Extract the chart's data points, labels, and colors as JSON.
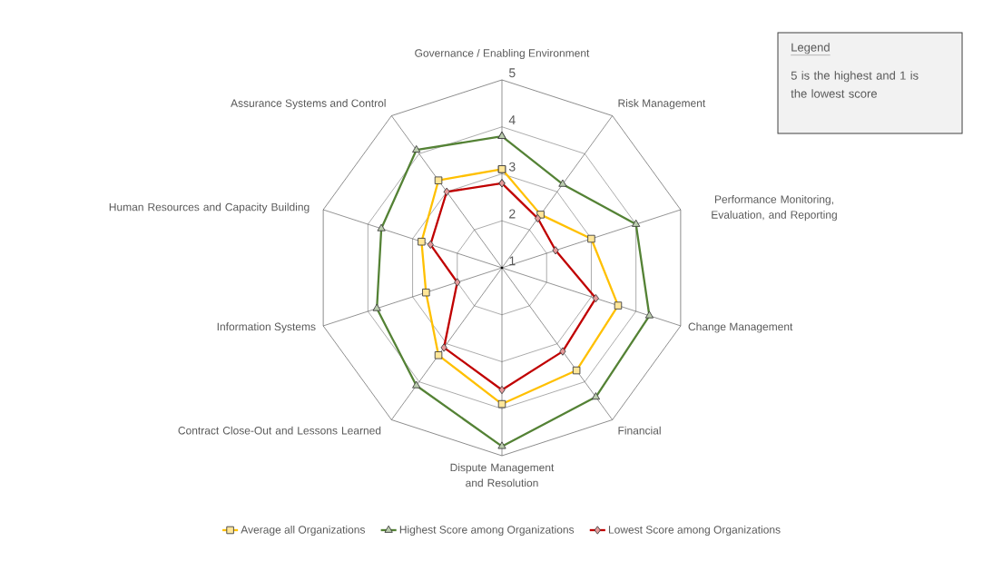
{
  "chart_data": {
    "type": "radar",
    "categories": [
      "Governance / Enabling Environment",
      "Risk Management",
      "Performance Monitoring, Evaluation, and Reporting",
      "Change Management",
      "Financial",
      "Dispute Management and Resolution",
      "Contract Close-Out and Lessons Learned",
      "Information Systems",
      "Human Resources and Capacity Building",
      "Assurance Systems and Control"
    ],
    "series": [
      {
        "name": "Average all Organizations",
        "color": "#ffc000",
        "marker": "square",
        "values": [
          3.1,
          2.4,
          3.0,
          3.6,
          3.7,
          3.9,
          3.3,
          2.7,
          2.8,
          3.3
        ]
      },
      {
        "name": "Highest Score among Organizations",
        "color": "#548235",
        "marker": "triangle",
        "values": [
          3.8,
          3.2,
          4.0,
          4.3,
          4.4,
          4.8,
          4.1,
          3.8,
          3.7,
          4.1
        ]
      },
      {
        "name": "Lowest Score among Organizations",
        "color": "#c00000",
        "marker": "diamond",
        "values": [
          2.8,
          2.3,
          2.2,
          3.1,
          3.2,
          3.6,
          3.1,
          2.0,
          2.6,
          3.0
        ]
      }
    ],
    "ylim": [
      1,
      5
    ],
    "yticks": [
      1,
      2,
      3,
      4,
      5
    ],
    "grid": true,
    "legend": "bottom",
    "annotations": [
      "Legend",
      "5 is the highest and 1 is the lowest score"
    ]
  }
}
